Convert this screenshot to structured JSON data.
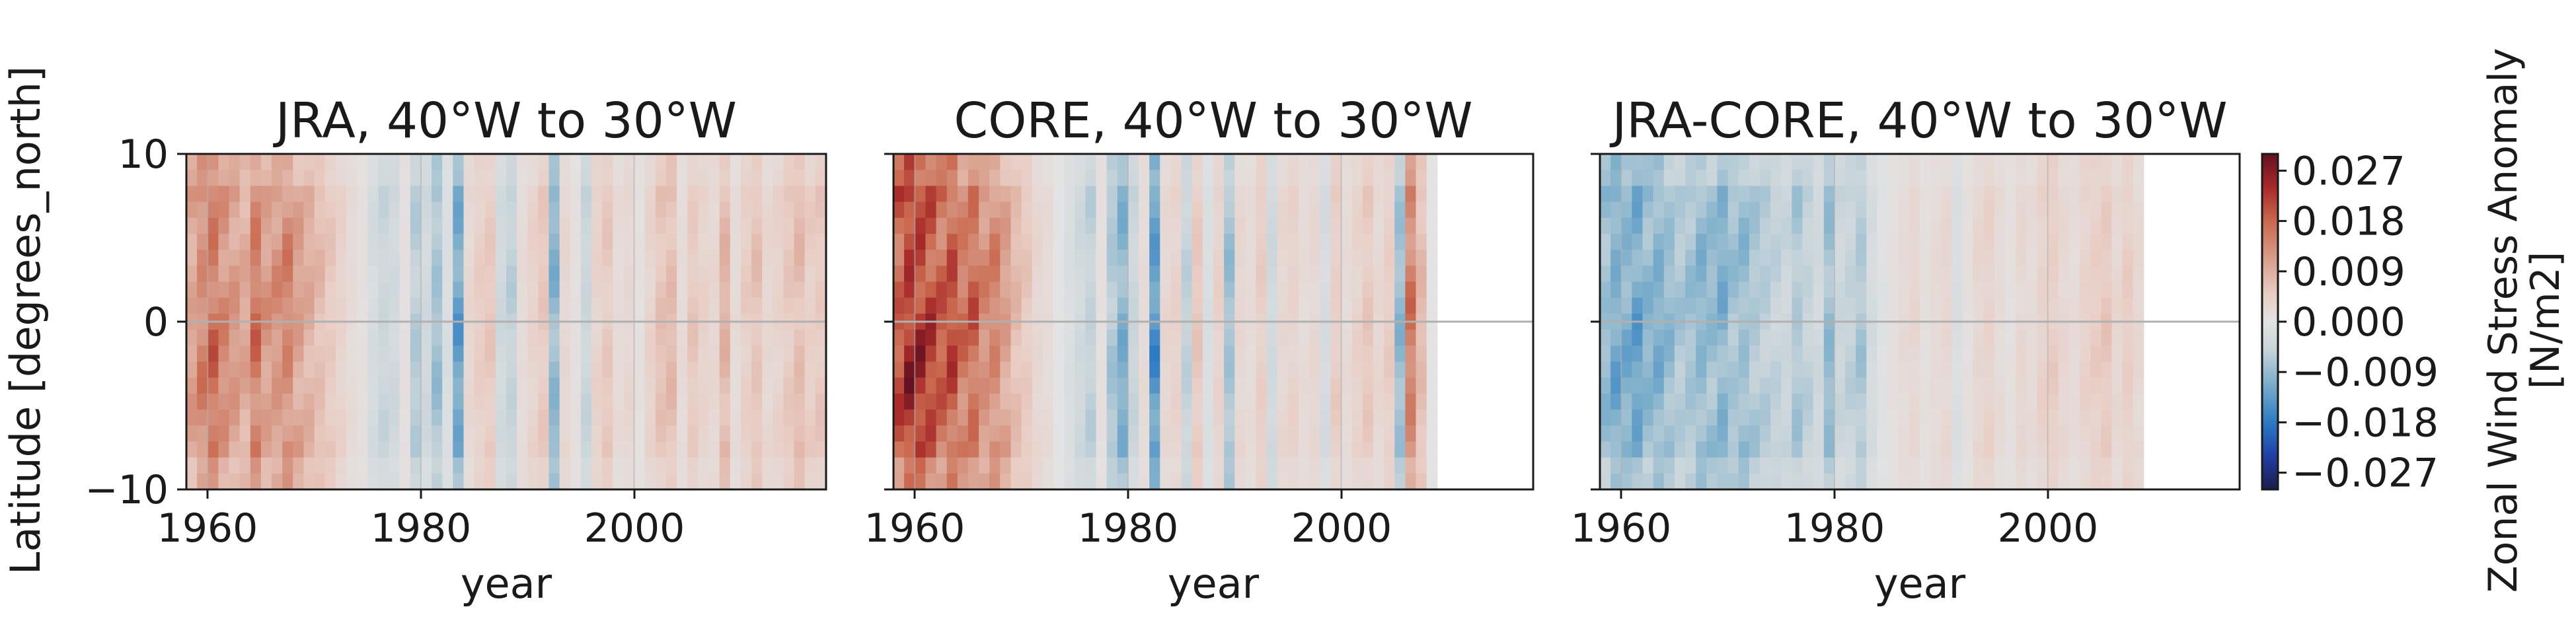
{
  "chart_data": [
    {
      "type": "heatmap",
      "title": "JRA, 40°W to 30°W",
      "xlabel": "year",
      "ylabel": "Latitude [degrees_north]",
      "x_range": [
        1958,
        2018
      ],
      "ylim": [
        -10,
        10
      ],
      "x_ticks": [
        "1960",
        "1980",
        "2000"
      ],
      "y_ticks": [
        "10",
        "0",
        "−10"
      ],
      "profile": [
        0.012,
        0.016,
        0.019,
        0.015,
        0.013,
        0.011,
        0.018,
        0.013,
        0.014,
        0.016,
        0.012,
        0.01,
        0.008,
        0.006,
        0.004,
        0.002,
        0.001,
        -0.003,
        -0.005,
        -0.004,
        0.001,
        -0.007,
        -0.004,
        -0.009,
        -0.002,
        -0.014,
        0.003,
        0.005,
        0.006,
        -0.004,
        -0.006,
        0.002,
        0.004,
        0.006,
        -0.011,
        0.003,
        0.001,
        -0.005,
        0.004,
        0.006,
        0.002,
        0.003,
        0.001,
        0.004,
        0.007,
        0.008,
        0.002,
        0.006,
        0.004,
        0.003,
        0.009,
        0.002,
        0.005,
        0.007,
        0.003,
        0.004,
        0.006,
        0.008,
        0.005,
        0.006
      ]
    },
    {
      "type": "heatmap",
      "title": "CORE, 40°W to 30°W",
      "xlabel": "year",
      "x_range": [
        1958,
        2018
      ],
      "ylim": [
        -10,
        10
      ],
      "data_end_year": 2009,
      "x_ticks": [
        "1960",
        "1980",
        "2000"
      ],
      "profile": [
        0.022,
        0.027,
        0.026,
        0.024,
        0.021,
        0.023,
        0.018,
        0.02,
        0.015,
        0.016,
        0.012,
        0.008,
        0.006,
        0.003,
        0.002,
        0.0,
        -0.002,
        -0.004,
        -0.006,
        0.001,
        -0.008,
        -0.012,
        -0.005,
        0.002,
        -0.016,
        0.003,
        0.004,
        -0.006,
        0.006,
        -0.002,
        0.004,
        -0.009,
        0.003,
        0.002,
        0.005,
        -0.004,
        0.003,
        0.004,
        0.002,
        0.003,
        -0.003,
        0.005,
        0.002,
        0.004,
        0.006,
        0.003,
        0.005,
        -0.01,
        0.017,
        0.008,
        0.0
      ]
    },
    {
      "type": "heatmap",
      "title": "JRA-CORE, 40°W to 30°W",
      "xlabel": "year",
      "x_range": [
        1958,
        2018
      ],
      "ylim": [
        -10,
        10
      ],
      "data_end_year": 2009,
      "x_ticks": [
        "1960",
        "1980",
        "2000"
      ],
      "profile": [
        -0.01,
        -0.013,
        -0.012,
        -0.014,
        -0.011,
        -0.012,
        -0.01,
        -0.008,
        -0.009,
        -0.011,
        -0.01,
        -0.012,
        -0.009,
        -0.01,
        -0.008,
        -0.007,
        -0.006,
        -0.005,
        -0.008,
        -0.006,
        -0.004,
        -0.01,
        -0.005,
        -0.006,
        -0.008,
        -0.003,
        -0.001,
        0.001,
        0.002,
        0.003,
        0.001,
        0.002,
        0.003,
        -0.002,
        0.001,
        0.003,
        0.004,
        0.002,
        0.001,
        0.003,
        0.002,
        0.004,
        0.005,
        0.003,
        0.002,
        0.004,
        0.005,
        0.006,
        0.003,
        0.005,
        0.003
      ]
    }
  ],
  "colorbar": {
    "label": "Zonal Wind Stress Anomaly",
    "units": "[N/m2]",
    "vmin": -0.03,
    "vmax": 0.03,
    "ticks": [
      "0.027",
      "0.018",
      "0.009",
      "0.000",
      "−0.009",
      "−0.018",
      "−0.027"
    ],
    "tick_values": [
      0.027,
      0.018,
      0.009,
      0.0,
      -0.009,
      -0.018,
      -0.027
    ],
    "colormap": [
      "#1b1d4d",
      "#1f3fa6",
      "#2b7bc4",
      "#7fb0cb",
      "#c9d5da",
      "#e3e3e3",
      "#e9cdc4",
      "#d9a18f",
      "#c9684e",
      "#a82a2a",
      "#651120"
    ]
  }
}
